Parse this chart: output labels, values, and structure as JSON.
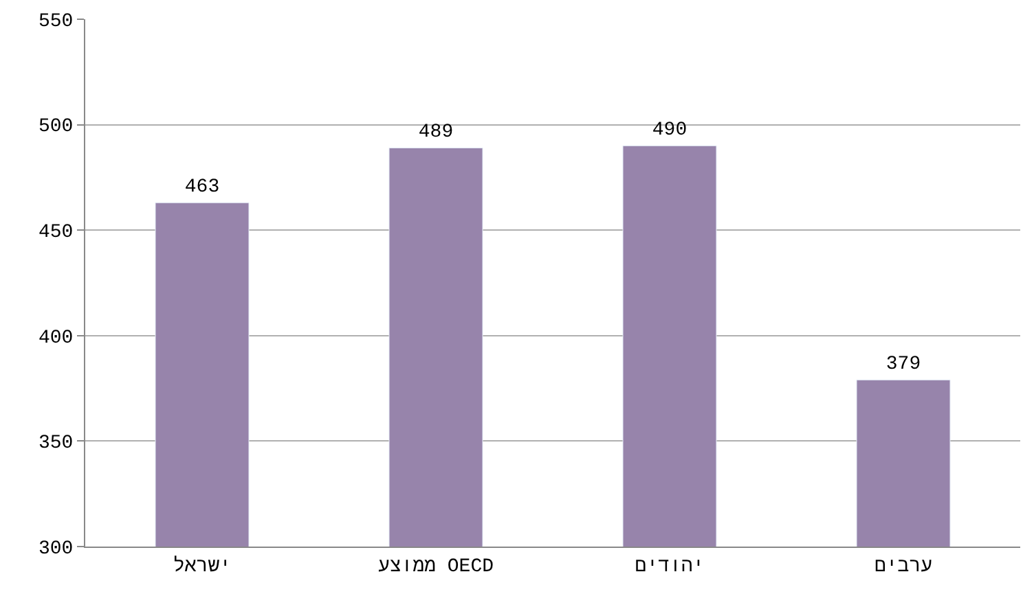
{
  "chart_data": {
    "type": "bar",
    "categories": [
      "ישראל",
      "ממוצע OECD",
      "יהודים",
      "ערבים"
    ],
    "values": [
      463,
      489,
      490,
      379
    ],
    "color": "#9784ab",
    "ylim": [
      300,
      550
    ],
    "yticks": [
      300,
      350,
      400,
      450,
      500,
      550
    ],
    "grid": "y",
    "data_labels": true,
    "legend": false
  }
}
